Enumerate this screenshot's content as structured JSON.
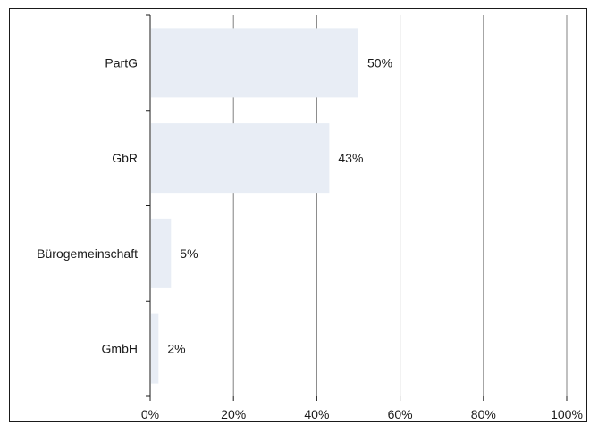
{
  "chart_data": {
    "type": "bar",
    "orientation": "horizontal",
    "categories": [
      "PartG",
      "GbR",
      "Bürogemeinschaft",
      "GmbH"
    ],
    "values": [
      50,
      43,
      5,
      2
    ],
    "data_labels": [
      "50%",
      "43%",
      "5%",
      "2%"
    ],
    "xlim": [
      0,
      100
    ],
    "x_ticks": [
      0,
      20,
      40,
      60,
      80,
      100
    ],
    "x_tick_labels": [
      "0%",
      "20%",
      "40%",
      "60%",
      "80%",
      "100%"
    ],
    "grid": true,
    "legend": "none",
    "bar_color": "#e8edf5",
    "grid_color": "#808080",
    "axis_color": "#1a1a1a"
  }
}
